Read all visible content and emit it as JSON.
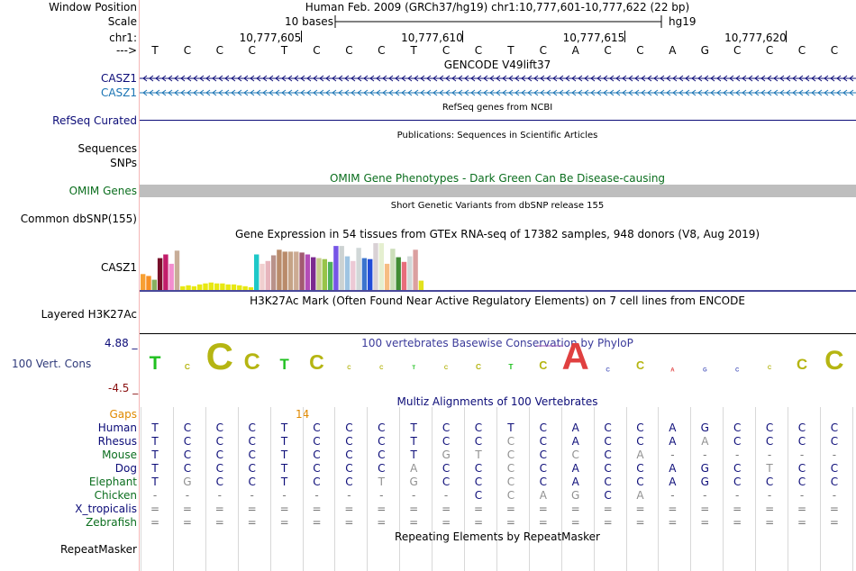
{
  "header": {
    "window_position_label": "Window Position",
    "window_position_text": "Human Feb. 2009 (GRCh37/hg19)   chr1:10,777,601-10,777,622 (22 bp)",
    "scale_label": "Scale",
    "scale_text": "10 bases",
    "scale_assembly": "hg19",
    "chrom_label": "chr1:",
    "positions": [
      "10,777,605",
      "10,777,610",
      "10,777,615",
      "10,777,620"
    ],
    "strand_label": "--->",
    "bases": [
      "T",
      "C",
      "C",
      "C",
      "T",
      "C",
      "C",
      "C",
      "T",
      "C",
      "C",
      "T",
      "C",
      "A",
      "C",
      "C",
      "A",
      "G",
      "C",
      "C",
      "C",
      "C"
    ]
  },
  "tracks": {
    "gencode": {
      "title": "GENCODE V49lift37",
      "genes": [
        "CASZ1",
        "CASZ1"
      ],
      "colors": [
        "#0c0c78",
        "#1a74b4"
      ]
    },
    "refseq": {
      "label": "RefSeq Curated",
      "title": "RefSeq genes from NCBI"
    },
    "publications": {
      "title": "Publications: Sequences in Scientific Articles",
      "labels": [
        "Sequences",
        "SNPs"
      ]
    },
    "omim": {
      "label": "OMIM Genes",
      "title": "OMIM Gene Phenotypes - Dark Green Can Be Disease-causing"
    },
    "dbsnp": {
      "label": "Common dbSNP(155)",
      "title": "Short Genetic Variants from dbSNP release 155"
    },
    "gtex": {
      "label": "CASZ1",
      "title": "Gene Expression in 54 tissues from GTEx RNA-seq of 17382 samples, 948 donors (V8, Aug 2019)",
      "values": [
        0.34,
        0.3,
        0.22,
        0.68,
        0.76,
        0.56,
        0.84,
        0.08,
        0.1,
        0.08,
        0.12,
        0.14,
        0.16,
        0.14,
        0.14,
        0.12,
        0.12,
        0.1,
        0.08,
        0.06,
        0.76,
        0.56,
        0.62,
        0.74,
        0.86,
        0.82,
        0.82,
        0.82,
        0.8,
        0.76,
        0.7,
        0.68,
        0.66,
        0.6,
        0.94,
        0.94,
        0.72,
        0.62,
        0.9,
        0.68,
        0.66,
        1.0,
        1.0,
        0.56,
        0.88,
        0.7,
        0.6,
        0.72,
        0.86,
        0.2
      ],
      "colors": [
        "#f7a033",
        "#f79024",
        "#88b060",
        "#770f2a",
        "#c21d6a",
        "#f28ecf",
        "#c8ad98",
        "#e8e811",
        "#e8e811",
        "#e8e811",
        "#e8e811",
        "#e8e811",
        "#e8e811",
        "#e8e811",
        "#e8e811",
        "#e8e811",
        "#e8e811",
        "#e8e811",
        "#e8e811",
        "#e8e811",
        "#1ec8c8",
        "#f0cfcf",
        "#e7b5bd",
        "#b9928a",
        "#b98b6a",
        "#b98b6a",
        "#c5a386",
        "#ccab93",
        "#a25a71",
        "#b34db7",
        "#7b2a8f",
        "#c8cc8c",
        "#98c449",
        "#4fb25b",
        "#7655e6",
        "#ccd2d2",
        "#9fc4e2",
        "#ecc9d5",
        "#d1d8d8",
        "#3b74ce",
        "#214cd8",
        "#d9d1d5",
        "#e5efd0",
        "#f6bd83",
        "#ccdeb9",
        "#418c34",
        "#e86d7b",
        "#d2d8d8",
        "#dba0a0",
        "#e2e21d"
      ]
    },
    "h3k27ac": {
      "label": "Layered H3K27Ac",
      "title": "H3K27Ac Mark (Often Found Near Active Regulatory Elements) on 7 cell lines from ENCODE"
    },
    "conservation": {
      "label": "100 Vert. Cons",
      "title": "100 vertebrates Basewise Conservation by PhyloP",
      "y_max": "4.88 _",
      "y_min": "-4.5 _",
      "scores": [
        0.5,
        0.2,
        1.0,
        0.6,
        0.4,
        0.55,
        0.12,
        0.08,
        0.1,
        0.1,
        0.2,
        0.2,
        0.3,
        1.0,
        -0.15,
        0.3,
        -0.05,
        -0.1,
        -0.05,
        0.08,
        0.4,
        0.7
      ]
    },
    "multiz": {
      "title": "Multiz Alignments of 100 Vertebrates",
      "gaps_label": "Gaps",
      "gap_count": "14",
      "species": [
        {
          "name": "Human",
          "color": "#0c0c78",
          "seq": "TCCCTCCCTCCTCACCAGCCCC"
        },
        {
          "name": "Rhesus",
          "color": "#0c0c78",
          "seq": "TCCCTCCCTCCCCACCAACCCC"
        },
        {
          "name": "Mouse",
          "color": "#0b6e1e",
          "seq": "TCCCTCCCTGTCCCCA------"
        },
        {
          "name": "Dog",
          "color": "#0c0c78",
          "seq": "TCCCTCCCACCCCACCAGCTCC"
        },
        {
          "name": "Elephant",
          "color": "#0b6e1e",
          "seq": "TGCCTCCTGCCCCACCAGCCCC"
        },
        {
          "name": "Chicken",
          "color": "#0b6e1e",
          "seq": "----------CCAGCA------"
        },
        {
          "name": "X_tropicalis",
          "color": "#0c0c78",
          "seq": "======================"
        },
        {
          "name": "Zebrafish",
          "color": "#0b6e1e",
          "seq": "======================"
        }
      ]
    },
    "repeatmasker": {
      "label": "RepeatMasker",
      "title": "Repeating Elements by RepeatMasker"
    }
  }
}
